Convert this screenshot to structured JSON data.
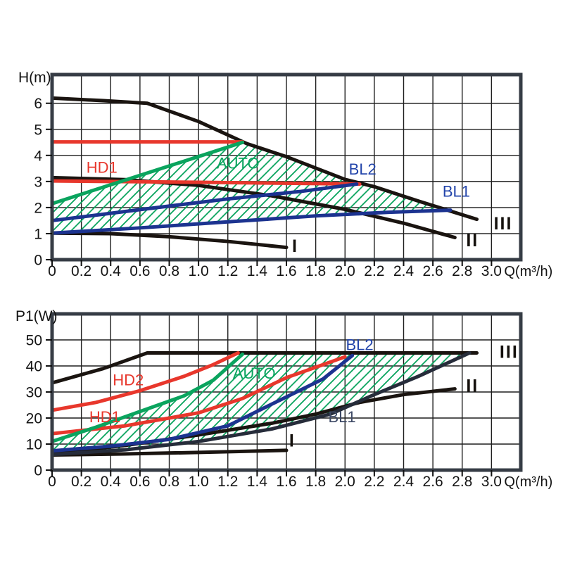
{
  "figure": {
    "description": "Pump performance curves: head and power input versus flow",
    "style": {
      "grid_color": "#1f1f1f",
      "border_color": "#363c45",
      "black_curve": "#1a1410",
      "red": "#e8372c",
      "green": "#0aa45e",
      "blue_curve": "#1c3390",
      "blue_label": "#2244aa",
      "dark_navy_curve": "#262c3a",
      "dark_navy_label": "#3e4a66"
    }
  },
  "chart_data": [
    {
      "name": "head-chart",
      "type": "line",
      "title": "",
      "ylabel": "H(m)",
      "xlabel": "Q(m³/h)",
      "xlim": [
        0,
        3.2
      ],
      "ylim": [
        0,
        7.1
      ],
      "grid": true,
      "legend_position": "none",
      "x_ticks": [
        "0",
        "0.2",
        "0.4",
        "0.6",
        "0.8",
        "1.0",
        "1.2",
        "1.4",
        "1.6",
        "1.8",
        "2.0",
        "2.2",
        "2.4",
        "2.6",
        "2.8",
        "3.0"
      ],
      "y_ticks": [
        "0",
        "1",
        "2",
        "3",
        "4",
        "5",
        "6"
      ],
      "hatch_color": "#0aa45e",
      "series": [
        {
          "name": "speed-III",
          "color": "#1a1410",
          "width": 5,
          "points": [
            [
              0,
              6.2
            ],
            [
              0.35,
              6.1
            ],
            [
              0.65,
              6.0
            ],
            [
              1.0,
              5.3
            ],
            [
              1.33,
              4.45
            ],
            [
              1.6,
              3.95
            ],
            [
              2.0,
              3.08
            ],
            [
              2.2,
              2.8
            ],
            [
              2.5,
              2.25
            ],
            [
              2.9,
              1.55
            ]
          ]
        },
        {
          "name": "speed-II",
          "color": "#1a1410",
          "width": 5,
          "points": [
            [
              0,
              3.15
            ],
            [
              0.5,
              3.07
            ],
            [
              1.0,
              2.85
            ],
            [
              1.5,
              2.45
            ],
            [
              2.0,
              1.93
            ],
            [
              2.4,
              1.4
            ],
            [
              2.75,
              0.85
            ]
          ]
        },
        {
          "name": "speed-I",
          "color": "#1a1410",
          "width": 5,
          "points": [
            [
              0,
              1.02
            ],
            [
              0.4,
              1.0
            ],
            [
              0.8,
              0.88
            ],
            [
              1.2,
              0.7
            ],
            [
              1.6,
              0.47
            ]
          ]
        },
        {
          "name": "HD2",
          "color": "#e8372c",
          "width": 5,
          "points": [
            [
              0,
              4.52
            ],
            [
              1.3,
              4.52
            ]
          ]
        },
        {
          "name": "HD1",
          "color": "#e8372c",
          "width": 5,
          "points": [
            [
              0,
              3.02
            ],
            [
              1.0,
              2.97
            ],
            [
              2.1,
              2.9
            ]
          ]
        },
        {
          "name": "AUTO-upper",
          "color": "#0aa45e",
          "width": 5,
          "points": [
            [
              0,
              2.15
            ],
            [
              1.3,
              4.5
            ]
          ]
        },
        {
          "name": "BL2",
          "color": "#1c3390",
          "width": 5,
          "points": [
            [
              0,
              1.5
            ],
            [
              0.6,
              1.92
            ],
            [
              1.2,
              2.33
            ],
            [
              1.7,
              2.62
            ],
            [
              2.08,
              2.9
            ]
          ]
        },
        {
          "name": "BL1",
          "color": "#1c3390",
          "width": 5,
          "points": [
            [
              0,
              1.02
            ],
            [
              0.6,
              1.22
            ],
            [
              1.2,
              1.45
            ],
            [
              1.8,
              1.68
            ],
            [
              2.3,
              1.82
            ],
            [
              2.72,
              1.9
            ]
          ]
        }
      ],
      "auto_region": {
        "upper": [
          [
            0,
            2.15
          ],
          [
            1.3,
            4.5
          ],
          [
            1.6,
            3.95
          ],
          [
            2.0,
            3.08
          ],
          [
            2.2,
            2.8
          ],
          [
            2.5,
            2.25
          ],
          [
            2.72,
            1.9
          ]
        ],
        "lower": [
          [
            0,
            1.02
          ],
          [
            0.6,
            1.22
          ],
          [
            1.2,
            1.45
          ],
          [
            1.8,
            1.68
          ],
          [
            2.3,
            1.82
          ],
          [
            2.72,
            1.9
          ]
        ]
      },
      "labels": [
        {
          "text": "HD1",
          "x": 0.34,
          "y": 3.52,
          "color": "#e8372c",
          "bold": false
        },
        {
          "text": "AUTO",
          "x": 1.27,
          "y": 3.68,
          "color": "#0aa45e",
          "bold": false
        },
        {
          "text": "BL2",
          "x": 2.12,
          "y": 3.45,
          "color": "#2244aa",
          "bold": false
        },
        {
          "text": "BL1",
          "x": 2.76,
          "y": 2.6,
          "color": "#2244aa",
          "bold": false
        },
        {
          "text": "III",
          "x": 3.08,
          "y": 1.35,
          "color": "#14100c",
          "bold": true
        },
        {
          "text": "II",
          "x": 2.87,
          "y": 0.7,
          "color": "#14100c",
          "bold": true
        },
        {
          "text": "I",
          "x": 1.66,
          "y": 0.48,
          "color": "#14100c",
          "bold": true
        }
      ]
    },
    {
      "name": "power-chart",
      "type": "line",
      "title": "",
      "ylabel": "P1(W)",
      "xlabel": "Q(m³/h)",
      "xlim": [
        0,
        3.2
      ],
      "ylim": [
        0,
        60
      ],
      "grid": true,
      "legend_position": "none",
      "x_ticks": [
        "0",
        "0.2",
        "0.4",
        "0.6",
        "0.8",
        "1.0",
        "1.2",
        "1.4",
        "1.6",
        "1.8",
        "2.0",
        "2.2",
        "2.4",
        "2.6",
        "2.8",
        "3.0"
      ],
      "y_ticks": [
        "0",
        "10",
        "20",
        "30",
        "40",
        "50"
      ],
      "hatch_color": "#0aa45e",
      "series": [
        {
          "name": "speed-III",
          "color": "#1a1410",
          "width": 5,
          "points": [
            [
              0,
              33.5
            ],
            [
              0.35,
              39
            ],
            [
              0.65,
              45
            ],
            [
              2.9,
              45
            ]
          ]
        },
        {
          "name": "speed-II",
          "color": "#1a1410",
          "width": 5,
          "points": [
            [
              0,
              6.3
            ],
            [
              0.5,
              9.5
            ],
            [
              1.0,
              13.5
            ],
            [
              1.5,
              18
            ],
            [
              1.8,
              21.5
            ],
            [
              2.1,
              26
            ],
            [
              2.4,
              29
            ],
            [
              2.75,
              31.2
            ]
          ]
        },
        {
          "name": "speed-I",
          "color": "#1a1410",
          "width": 5,
          "points": [
            [
              0,
              5.8
            ],
            [
              0.5,
              6.2
            ],
            [
              1.0,
              6.8
            ],
            [
              1.6,
              7.6
            ]
          ]
        },
        {
          "name": "HD2",
          "color": "#e8372c",
          "width": 5,
          "points": [
            [
              0,
              23
            ],
            [
              0.3,
              26
            ],
            [
              0.6,
              30.5
            ],
            [
              0.9,
              36
            ],
            [
              1.1,
              40.5
            ],
            [
              1.27,
              45
            ]
          ]
        },
        {
          "name": "HD1",
          "color": "#e8372c",
          "width": 5,
          "points": [
            [
              0,
              14
            ],
            [
              0.5,
              17
            ],
            [
              1.0,
              22
            ],
            [
              1.3,
              27.5
            ],
            [
              1.6,
              35.5
            ],
            [
              1.8,
              39.5
            ],
            [
              2.0,
              43.5
            ]
          ]
        },
        {
          "name": "AUTO-upper",
          "color": "#0aa45e",
          "width": 5,
          "points": [
            [
              0,
              11
            ],
            [
              0.3,
              16.5
            ],
            [
              0.6,
              22.5
            ],
            [
              0.9,
              28.5
            ],
            [
              1.1,
              34.5
            ],
            [
              1.3,
              44.5
            ]
          ]
        },
        {
          "name": "BL2",
          "color": "#1c3390",
          "width": 5,
          "points": [
            [
              0,
              7.4
            ],
            [
              0.4,
              9.2
            ],
            [
              0.8,
              11.8
            ],
            [
              1.2,
              17
            ],
            [
              1.56,
              27
            ],
            [
              1.85,
              35
            ],
            [
              2.05,
              44
            ]
          ]
        },
        {
          "name": "BL1",
          "color": "#262c3a",
          "width": 5,
          "points": [
            [
              0,
              6
            ],
            [
              0.5,
              7.8
            ],
            [
              1.0,
              11
            ],
            [
              1.5,
              15.8
            ],
            [
              1.9,
              21.5
            ],
            [
              2.2,
              29
            ],
            [
              2.5,
              36
            ],
            [
              2.85,
              45
            ]
          ]
        }
      ],
      "auto_region": {
        "upper": [
          [
            0,
            11
          ],
          [
            0.3,
            16.5
          ],
          [
            0.6,
            22.5
          ],
          [
            0.9,
            28.5
          ],
          [
            1.1,
            34.5
          ],
          [
            1.3,
            44.5
          ],
          [
            1.38,
            45
          ],
          [
            2.85,
            45
          ]
        ],
        "lower": [
          [
            0,
            6
          ],
          [
            0.5,
            7.8
          ],
          [
            1.0,
            11
          ],
          [
            1.5,
            15.8
          ],
          [
            1.9,
            21.5
          ],
          [
            2.2,
            29
          ],
          [
            2.5,
            36
          ],
          [
            2.85,
            45
          ]
        ]
      },
      "labels": [
        {
          "text": "HD2",
          "x": 0.52,
          "y": 34.5,
          "color": "#e8372c",
          "bold": false
        },
        {
          "text": "HD1",
          "x": 0.36,
          "y": 20.3,
          "color": "#e8372c",
          "bold": false
        },
        {
          "text": "AUTO",
          "x": 1.38,
          "y": 37,
          "color": "#0aa45e",
          "bold": false
        },
        {
          "text": "BL2",
          "x": 2.1,
          "y": 48,
          "color": "#2244aa",
          "bold": false
        },
        {
          "text": "BL1",
          "x": 1.98,
          "y": 20.3,
          "color": "#3e4a66",
          "bold": false
        },
        {
          "text": "III",
          "x": 3.12,
          "y": 45,
          "color": "#14100c",
          "bold": true
        },
        {
          "text": "II",
          "x": 2.87,
          "y": 32,
          "color": "#14100c",
          "bold": true
        },
        {
          "text": "I",
          "x": 1.64,
          "y": 11,
          "color": "#14100c",
          "bold": true
        }
      ]
    }
  ]
}
